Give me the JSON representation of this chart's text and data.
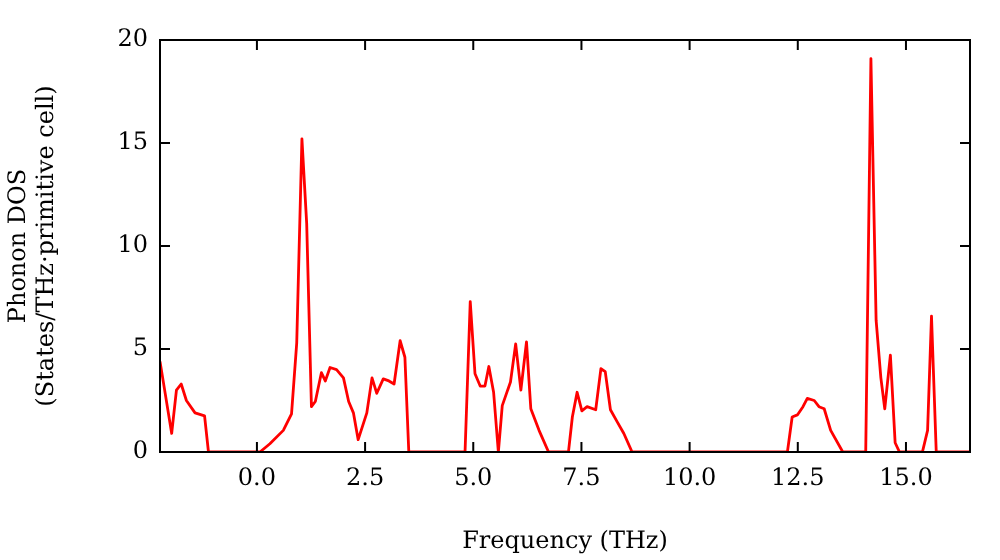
{
  "chart_data": {
    "type": "line",
    "xlabel": "Frequency (THz)",
    "ylabel": "Phonon DOS\n(States/THz·primitive cell)",
    "xlim": [
      -2.24,
      16.48
    ],
    "ylim": [
      0,
      20
    ],
    "xticks": [
      {
        "value": 0,
        "label": "0.0"
      },
      {
        "value": 2.5,
        "label": "2.5"
      },
      {
        "value": 5,
        "label": "5.0"
      },
      {
        "value": 7.5,
        "label": "7.5"
      },
      {
        "value": 10,
        "label": "10.0"
      },
      {
        "value": 12.5,
        "label": "12.5"
      },
      {
        "value": 15,
        "label": "15.0"
      }
    ],
    "yticks": [
      0,
      5,
      10,
      15,
      20
    ],
    "grid": false,
    "legend": false,
    "marker": "none",
    "line_style": "solid",
    "series": [
      {
        "color": "#ff0000",
        "x": [
          -2.24,
          -1.97,
          -1.86,
          -1.75,
          -1.63,
          -1.43,
          -1.21,
          -1.12,
          0.07,
          0.3,
          0.61,
          0.8,
          0.92,
          1.04,
          1.15,
          1.26,
          1.35,
          1.49,
          1.58,
          1.69,
          1.84,
          2.0,
          2.12,
          2.23,
          2.34,
          2.54,
          2.66,
          2.77,
          2.92,
          3.05,
          3.17,
          3.31,
          3.42,
          3.51,
          4.81,
          4.93,
          5.04,
          5.16,
          5.27,
          5.36,
          5.47,
          5.58,
          5.67,
          5.86,
          5.98,
          6.1,
          6.23,
          6.33,
          6.52,
          6.74,
          7.2,
          7.29,
          7.4,
          7.51,
          7.63,
          7.83,
          7.95,
          8.05,
          8.17,
          8.33,
          8.48,
          8.67,
          12.26,
          12.37,
          12.49,
          12.62,
          12.72,
          12.88,
          12.99,
          13.11,
          13.26,
          13.54,
          14.07,
          14.19,
          14.31,
          14.42,
          14.51,
          14.64,
          14.75,
          14.85,
          15.38,
          15.5,
          15.59,
          15.7,
          16.48
        ],
        "values": [
          4.4,
          0.9,
          3.0,
          3.3,
          2.5,
          1.9,
          1.75,
          0,
          0,
          0.4,
          1.05,
          1.85,
          5.3,
          15.2,
          11.1,
          2.2,
          2.45,
          3.85,
          3.45,
          4.1,
          4.0,
          3.6,
          2.45,
          1.9,
          0.6,
          1.9,
          3.6,
          2.85,
          3.55,
          3.45,
          3.3,
          5.4,
          4.6,
          0,
          0,
          7.3,
          3.8,
          3.2,
          3.2,
          4.15,
          2.9,
          0,
          2.25,
          3.4,
          5.25,
          3.0,
          5.35,
          2.1,
          1.05,
          0,
          0,
          1.7,
          2.9,
          2.0,
          2.2,
          2.05,
          4.05,
          3.9,
          2.05,
          1.45,
          0.9,
          0,
          0,
          1.7,
          1.8,
          2.2,
          2.6,
          2.5,
          2.2,
          2.1,
          1.05,
          0,
          0,
          19.1,
          6.4,
          3.6,
          2.1,
          4.7,
          0.45,
          0,
          0,
          1.05,
          6.6,
          0,
          0
        ]
      }
    ]
  }
}
